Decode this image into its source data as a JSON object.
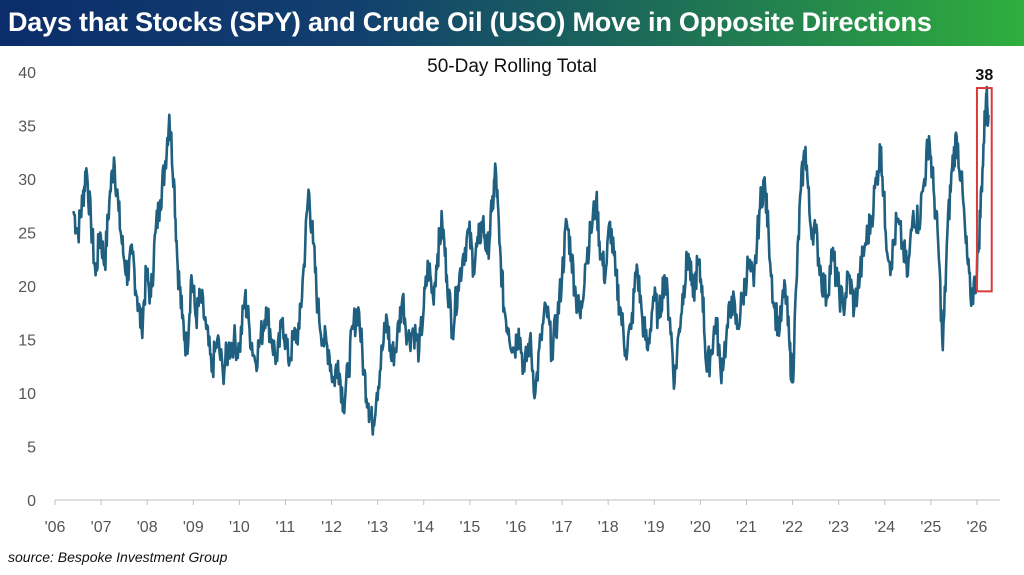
{
  "header": {
    "title": "Days that Stocks (SPY) and Crude Oil (USO) Move in Opposite Directions",
    "colors": {
      "banner_start": "#0b2d6b",
      "banner_end": "#2fae3d"
    }
  },
  "footer": {
    "source": "source: Bespoke Investment Group"
  },
  "chart_data": {
    "type": "line",
    "title": "50-Day Rolling Total",
    "xlabel": "",
    "ylabel": "",
    "xlim": [
      2006.0,
      2026.5
    ],
    "ylim": [
      0,
      40
    ],
    "grid": false,
    "legend": "none",
    "line_color": "#1f5f80",
    "highlight_color": "#d93a3a",
    "y_ticks": [
      0,
      5,
      10,
      15,
      20,
      25,
      30,
      35,
      40
    ],
    "x_ticks": [
      {
        "x": 2006,
        "label": "'06"
      },
      {
        "x": 2007,
        "label": "'07"
      },
      {
        "x": 2008,
        "label": "'08"
      },
      {
        "x": 2009,
        "label": "'09"
      },
      {
        "x": 2010,
        "label": "'10"
      },
      {
        "x": 2011,
        "label": "'11"
      },
      {
        "x": 2012,
        "label": "'12"
      },
      {
        "x": 2013,
        "label": "'13"
      },
      {
        "x": 2014,
        "label": "'14"
      },
      {
        "x": 2015,
        "label": "'15"
      },
      {
        "x": 2016,
        "label": "'16"
      },
      {
        "x": 2017,
        "label": "'17"
      },
      {
        "x": 2018,
        "label": "'18"
      },
      {
        "x": 2019,
        "label": "'19"
      },
      {
        "x": 2020,
        "label": "'20"
      },
      {
        "x": 2021,
        "label": "'21"
      },
      {
        "x": 2022,
        "label": "'22"
      },
      {
        "x": 2023,
        "label": "'23"
      },
      {
        "x": 2024,
        "label": "'24"
      },
      {
        "x": 2025,
        "label": "'25"
      },
      {
        "x": 2026,
        "label": "'26"
      }
    ],
    "series": [
      {
        "name": "50-Day Rolling Total",
        "points": [
          [
            2006.4,
            27
          ],
          [
            2006.5,
            25
          ],
          [
            2006.6,
            28
          ],
          [
            2006.68,
            31
          ],
          [
            2006.78,
            26
          ],
          [
            2006.88,
            21
          ],
          [
            2006.98,
            25
          ],
          [
            2007.08,
            22
          ],
          [
            2007.18,
            28
          ],
          [
            2007.28,
            32
          ],
          [
            2007.38,
            27
          ],
          [
            2007.48,
            23
          ],
          [
            2007.58,
            21
          ],
          [
            2007.68,
            23
          ],
          [
            2007.78,
            19
          ],
          [
            2007.88,
            16
          ],
          [
            2007.98,
            21
          ],
          [
            2008.08,
            19
          ],
          [
            2008.18,
            25
          ],
          [
            2008.28,
            28
          ],
          [
            2008.38,
            31
          ],
          [
            2008.48,
            36
          ],
          [
            2008.58,
            30
          ],
          [
            2008.66,
            22
          ],
          [
            2008.76,
            17
          ],
          [
            2008.86,
            14
          ],
          [
            2008.96,
            21
          ],
          [
            2009.06,
            17
          ],
          [
            2009.16,
            19
          ],
          [
            2009.28,
            16
          ],
          [
            2009.4,
            12
          ],
          [
            2009.52,
            15
          ],
          [
            2009.64,
            12
          ],
          [
            2009.76,
            14
          ],
          [
            2009.88,
            15
          ],
          [
            2010.0,
            14
          ],
          [
            2010.12,
            19
          ],
          [
            2010.22,
            16
          ],
          [
            2010.34,
            13
          ],
          [
            2010.46,
            15
          ],
          [
            2010.58,
            18
          ],
          [
            2010.7,
            15
          ],
          [
            2010.82,
            13
          ],
          [
            2010.94,
            17
          ],
          [
            2011.06,
            13
          ],
          [
            2011.18,
            15
          ],
          [
            2011.3,
            16
          ],
          [
            2011.4,
            22
          ],
          [
            2011.5,
            29
          ],
          [
            2011.6,
            24
          ],
          [
            2011.7,
            18
          ],
          [
            2011.82,
            15
          ],
          [
            2011.94,
            14
          ],
          [
            2012.04,
            11
          ],
          [
            2012.14,
            13
          ],
          [
            2012.26,
            9
          ],
          [
            2012.36,
            12
          ],
          [
            2012.46,
            16
          ],
          [
            2012.58,
            18
          ],
          [
            2012.7,
            12
          ],
          [
            2012.8,
            9
          ],
          [
            2012.88,
            7
          ],
          [
            2012.98,
            10
          ],
          [
            2013.1,
            14
          ],
          [
            2013.2,
            17
          ],
          [
            2013.3,
            13
          ],
          [
            2013.42,
            15
          ],
          [
            2013.54,
            19
          ],
          [
            2013.66,
            15
          ],
          [
            2013.78,
            16
          ],
          [
            2013.9,
            14
          ],
          [
            2014.0,
            18
          ],
          [
            2014.1,
            22
          ],
          [
            2014.2,
            19
          ],
          [
            2014.3,
            23
          ],
          [
            2014.4,
            26
          ],
          [
            2014.5,
            21
          ],
          [
            2014.62,
            16
          ],
          [
            2014.74,
            20
          ],
          [
            2014.86,
            23
          ],
          [
            2014.98,
            25
          ],
          [
            2015.08,
            22
          ],
          [
            2015.18,
            24
          ],
          [
            2015.28,
            26
          ],
          [
            2015.38,
            23
          ],
          [
            2015.48,
            27
          ],
          [
            2015.56,
            31
          ],
          [
            2015.64,
            24
          ],
          [
            2015.74,
            18
          ],
          [
            2015.84,
            16
          ],
          [
            2015.96,
            14
          ],
          [
            2016.06,
            16
          ],
          [
            2016.18,
            12
          ],
          [
            2016.3,
            15
          ],
          [
            2016.42,
            10
          ],
          [
            2016.54,
            15
          ],
          [
            2016.66,
            18
          ],
          [
            2016.78,
            14
          ],
          [
            2016.9,
            17
          ],
          [
            2017.0,
            21
          ],
          [
            2017.1,
            26
          ],
          [
            2017.2,
            23
          ],
          [
            2017.3,
            19
          ],
          [
            2017.4,
            17
          ],
          [
            2017.5,
            22
          ],
          [
            2017.62,
            25
          ],
          [
            2017.74,
            28
          ],
          [
            2017.84,
            23
          ],
          [
            2017.94,
            21
          ],
          [
            2018.04,
            26
          ],
          [
            2018.16,
            21
          ],
          [
            2018.26,
            18
          ],
          [
            2018.38,
            14
          ],
          [
            2018.5,
            16
          ],
          [
            2018.62,
            22
          ],
          [
            2018.74,
            17
          ],
          [
            2018.86,
            14
          ],
          [
            2018.98,
            19
          ],
          [
            2019.1,
            17
          ],
          [
            2019.22,
            21
          ],
          [
            2019.34,
            17
          ],
          [
            2019.44,
            11
          ],
          [
            2019.54,
            16
          ],
          [
            2019.64,
            20
          ],
          [
            2019.74,
            23
          ],
          [
            2019.84,
            19
          ],
          [
            2019.94,
            22
          ],
          [
            2020.04,
            20
          ],
          [
            2020.14,
            12
          ],
          [
            2020.24,
            14
          ],
          [
            2020.34,
            17
          ],
          [
            2020.44,
            12
          ],
          [
            2020.56,
            15
          ],
          [
            2020.68,
            19
          ],
          [
            2020.8,
            16
          ],
          [
            2020.92,
            19
          ],
          [
            2021.04,
            22
          ],
          [
            2021.16,
            20
          ],
          [
            2021.28,
            27
          ],
          [
            2021.38,
            30
          ],
          [
            2021.48,
            25
          ],
          [
            2021.6,
            18
          ],
          [
            2021.72,
            16
          ],
          [
            2021.84,
            20
          ],
          [
            2021.94,
            14
          ],
          [
            2022.0,
            11
          ],
          [
            2022.08,
            20
          ],
          [
            2022.18,
            29
          ],
          [
            2022.28,
            33
          ],
          [
            2022.38,
            26
          ],
          [
            2022.5,
            25
          ],
          [
            2022.62,
            21
          ],
          [
            2022.74,
            19
          ],
          [
            2022.86,
            23
          ],
          [
            2022.98,
            20
          ],
          [
            2023.1,
            18
          ],
          [
            2023.22,
            21
          ],
          [
            2023.34,
            18
          ],
          [
            2023.46,
            21
          ],
          [
            2023.58,
            24
          ],
          [
            2023.7,
            26
          ],
          [
            2023.82,
            30
          ],
          [
            2023.92,
            33
          ],
          [
            2024.02,
            25
          ],
          [
            2024.14,
            22
          ],
          [
            2024.26,
            26
          ],
          [
            2024.38,
            24
          ],
          [
            2024.5,
            21
          ],
          [
            2024.62,
            27
          ],
          [
            2024.74,
            26
          ],
          [
            2024.86,
            30
          ],
          [
            2024.96,
            34
          ],
          [
            2025.06,
            29
          ],
          [
            2025.16,
            24
          ],
          [
            2025.26,
            14
          ],
          [
            2025.36,
            25
          ],
          [
            2025.46,
            31
          ],
          [
            2025.56,
            34
          ],
          [
            2025.66,
            30
          ],
          [
            2025.76,
            24
          ],
          [
            2025.86,
            19
          ],
          [
            2025.96,
            20
          ],
          [
            2026.04,
            24
          ],
          [
            2026.12,
            31
          ],
          [
            2026.2,
            38
          ],
          [
            2026.25,
            36
          ]
        ]
      }
    ],
    "annotations": [
      {
        "label": "38",
        "x": 2026.2,
        "y": 38,
        "box_x": [
          2026.0,
          2026.32
        ],
        "box_y": [
          19.5,
          38.5
        ]
      }
    ]
  }
}
